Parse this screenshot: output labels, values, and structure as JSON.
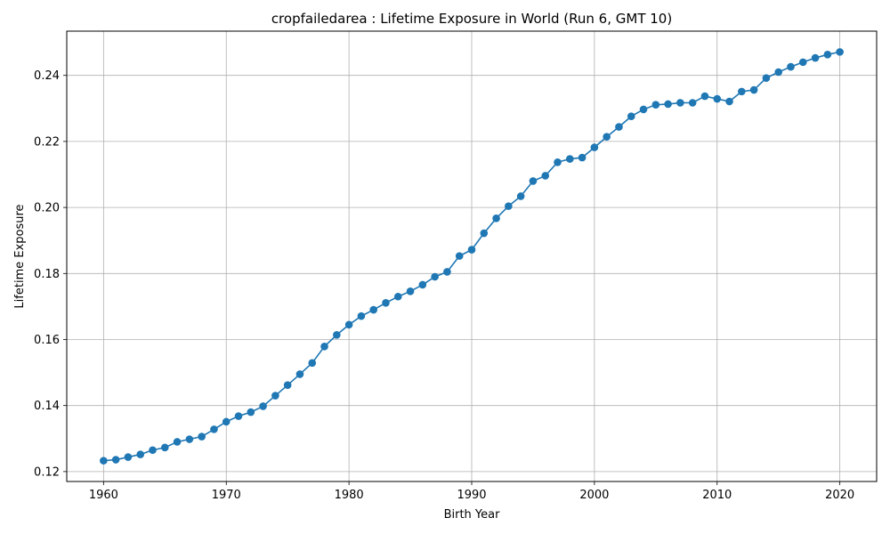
{
  "chart_data": {
    "type": "line",
    "title": "cropfailedarea : Lifetime Exposure in World (Run 6, GMT 10)",
    "xlabel": "Birth Year",
    "ylabel": "Lifetime Exposure",
    "xlim": [
      1957,
      2023
    ],
    "ylim": [
      0.117,
      0.2534
    ],
    "xticks": [
      1960,
      1970,
      1980,
      1990,
      2000,
      2010,
      2020
    ],
    "xtick_labels": [
      "1960",
      "1970",
      "1980",
      "1990",
      "2000",
      "2010",
      "2020"
    ],
    "yticks": [
      0.12,
      0.14,
      0.16,
      0.18,
      0.2,
      0.22,
      0.24
    ],
    "ytick_labels": [
      "0.12",
      "0.14",
      "0.16",
      "0.18",
      "0.20",
      "0.22",
      "0.24"
    ],
    "grid": true,
    "color": "#1f77b4",
    "marker": "circle",
    "x": [
      1960,
      1961,
      1962,
      1963,
      1964,
      1965,
      1966,
      1967,
      1968,
      1969,
      1970,
      1971,
      1972,
      1973,
      1974,
      1975,
      1976,
      1977,
      1978,
      1979,
      1980,
      1981,
      1982,
      1983,
      1984,
      1985,
      1986,
      1987,
      1988,
      1989,
      1990,
      1991,
      1992,
      1993,
      1994,
      1995,
      1996,
      1997,
      1998,
      1999,
      2000,
      2001,
      2002,
      2003,
      2004,
      2005,
      2006,
      2007,
      2008,
      2009,
      2010,
      2011,
      2012,
      2013,
      2014,
      2015,
      2016,
      2017,
      2018,
      2019,
      2020
    ],
    "y": [
      0.1233,
      0.1236,
      0.1244,
      0.1252,
      0.1265,
      0.1273,
      0.129,
      0.1298,
      0.1306,
      0.1328,
      0.1351,
      0.1368,
      0.138,
      0.1398,
      0.143,
      0.1462,
      0.1495,
      0.1529,
      0.1579,
      0.1614,
      0.1645,
      0.1671,
      0.169,
      0.1711,
      0.173,
      0.1746,
      0.1766,
      0.179,
      0.1805,
      0.1853,
      0.1872,
      0.1922,
      0.1967,
      0.2004,
      0.2034,
      0.208,
      0.2096,
      0.2137,
      0.2147,
      0.2151,
      0.2182,
      0.2214,
      0.2244,
      0.2276,
      0.2297,
      0.2311,
      0.2313,
      0.2317,
      0.2317,
      0.2337,
      0.2329,
      0.2321,
      0.2351,
      0.2356,
      0.2392,
      0.241,
      0.2426,
      0.244,
      0.2453,
      0.2463,
      0.2471
    ]
  }
}
